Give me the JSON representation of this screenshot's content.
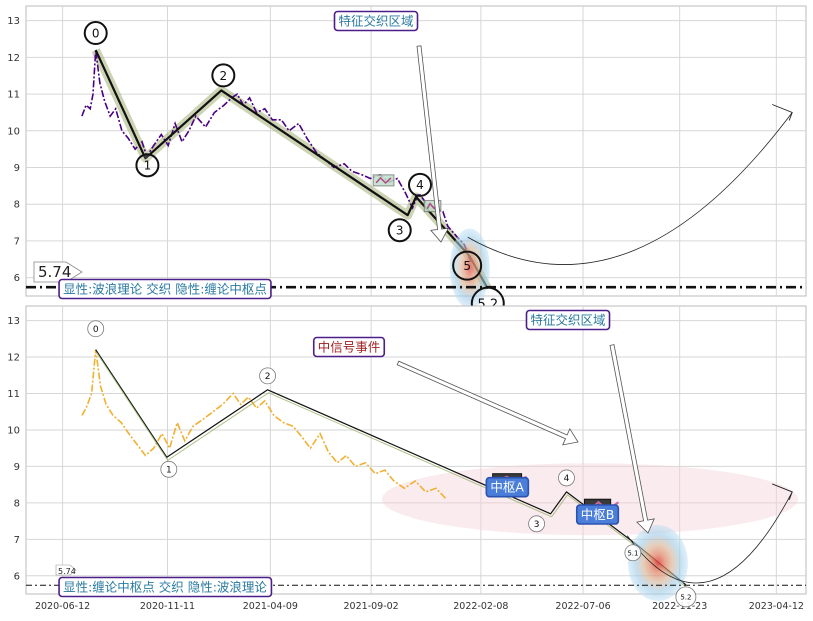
{
  "chart_data": [
    {
      "type": "line",
      "panel": "top",
      "ylim": [
        5.5,
        13.4
      ],
      "yticks": [
        6,
        7,
        8,
        9,
        10,
        11,
        12,
        13
      ],
      "grid": true,
      "series_color": "#4b0082",
      "price": [
        [
          "2020-07-10",
          10.4
        ],
        [
          "2020-07-16",
          10.7
        ],
        [
          "2020-07-22",
          10.6
        ],
        [
          "2020-07-26",
          11.0
        ],
        [
          "2020-07-30",
          12.2
        ],
        [
          "2020-08-05",
          11.3
        ],
        [
          "2020-08-12",
          10.8
        ],
        [
          "2020-08-20",
          10.4
        ],
        [
          "2020-08-28",
          10.6
        ],
        [
          "2020-09-06",
          10.0
        ],
        [
          "2020-09-15",
          9.8
        ],
        [
          "2020-09-25",
          9.5
        ],
        [
          "2020-10-05",
          9.7
        ],
        [
          "2020-10-12",
          9.3
        ],
        [
          "2020-10-22",
          9.6
        ],
        [
          "2020-11-02",
          9.9
        ],
        [
          "2020-11-12",
          9.6
        ],
        [
          "2020-11-22",
          10.2
        ],
        [
          "2020-12-02",
          9.7
        ],
        [
          "2020-12-12",
          10.0
        ],
        [
          "2020-12-22",
          10.4
        ],
        [
          "2021-01-05",
          10.1
        ],
        [
          "2021-01-18",
          10.5
        ],
        [
          "2021-02-01",
          10.7
        ],
        [
          "2021-02-12",
          10.9
        ],
        [
          "2021-02-20",
          11.0
        ],
        [
          "2021-03-01",
          10.7
        ],
        [
          "2021-03-10",
          10.9
        ],
        [
          "2021-03-20",
          10.5
        ],
        [
          "2021-04-01",
          10.6
        ],
        [
          "2021-04-12",
          10.3
        ],
        [
          "2021-04-25",
          10.3
        ],
        [
          "2021-05-06",
          10.0
        ],
        [
          "2021-05-20",
          10.2
        ],
        [
          "2021-06-01",
          9.8
        ],
        [
          "2021-06-15",
          9.4
        ],
        [
          "2021-06-28",
          9.2
        ],
        [
          "2021-07-10",
          9.0
        ],
        [
          "2021-07-25",
          9.1
        ],
        [
          "2021-08-05",
          8.9
        ],
        [
          "2021-08-20",
          8.8
        ],
        [
          "2021-09-01",
          8.7
        ],
        [
          "2021-09-15",
          8.8
        ],
        [
          "2021-09-28",
          8.6
        ],
        [
          "2021-10-10",
          8.7
        ],
        [
          "2021-10-22",
          8.3
        ],
        [
          "2021-11-01",
          7.9
        ],
        [
          "2021-11-10",
          8.3
        ],
        [
          "2021-11-22",
          8.0
        ],
        [
          "2021-12-05",
          7.9
        ],
        [
          "2021-12-15",
          7.8
        ],
        [
          "2021-12-22",
          7.4
        ],
        [
          "2022-01-05",
          7.1
        ],
        [
          "2022-01-15",
          6.9
        ],
        [
          "2022-01-25",
          6.4
        ]
      ],
      "wave_points": [
        {
          "label": "0",
          "date": "2020-07-30",
          "value": 12.2
        },
        {
          "label": "1",
          "date": "2020-10-10",
          "value": 9.25
        },
        {
          "label": "2",
          "date": "2021-01-28",
          "value": 11.1
        },
        {
          "label": "3",
          "date": "2021-10-25",
          "value": 7.7
        },
        {
          "label": "4",
          "date": "2021-11-06",
          "value": 8.2
        },
        {
          "label": "5",
          "date": "2022-01-22",
          "value": 6.6
        },
        {
          "label": "5.2",
          "date": "2022-02-18",
          "value": 5.7
        }
      ],
      "boxes": [
        {
          "start": "2021-09-05",
          "end": "2021-10-05",
          "low": 8.5,
          "high": 8.8
        },
        {
          "start": "2021-11-18",
          "end": "2021-12-12",
          "low": 7.8,
          "high": 8.1
        }
      ],
      "hline": {
        "value": 5.74,
        "label": "5.74"
      },
      "arc": {
        "start": "2022-01-20",
        "end": "2023-05-05",
        "start_value": 7.1,
        "end_value": 10.5,
        "min_value": 6.7
      },
      "annotations": {
        "interweave": "特征交织区域",
        "legend": "显性:波浪理论 交织 隐性:缠论中枢点"
      }
    },
    {
      "type": "line",
      "panel": "bottom",
      "ylim": [
        5.5,
        13.4
      ],
      "yticks": [
        6,
        7,
        8,
        9,
        10,
        11,
        12,
        13
      ],
      "grid": true,
      "series_color": "#f0b030",
      "xtick_labels": [
        "2020-06-12",
        "2020-11-11",
        "2021-04-09",
        "2021-09-02",
        "2022-02-08",
        "2022-07-06",
        "2022-11-23",
        "2023-04-12"
      ],
      "price": [
        [
          "2020-07-10",
          10.4
        ],
        [
          "2020-07-16",
          10.6
        ],
        [
          "2020-07-24",
          11.0
        ],
        [
          "2020-07-30",
          12.2
        ],
        [
          "2020-08-06",
          11.2
        ],
        [
          "2020-08-14",
          10.7
        ],
        [
          "2020-08-24",
          10.4
        ],
        [
          "2020-09-05",
          10.2
        ],
        [
          "2020-09-16",
          9.9
        ],
        [
          "2020-09-28",
          9.6
        ],
        [
          "2020-10-10",
          9.3
        ],
        [
          "2020-10-22",
          9.5
        ],
        [
          "2020-11-03",
          9.9
        ],
        [
          "2020-11-14",
          9.5
        ],
        [
          "2020-11-25",
          10.2
        ],
        [
          "2020-12-06",
          9.7
        ],
        [
          "2020-12-18",
          10.1
        ],
        [
          "2021-01-02",
          10.3
        ],
        [
          "2021-01-16",
          10.5
        ],
        [
          "2021-01-30",
          10.7
        ],
        [
          "2021-02-14",
          11.0
        ],
        [
          "2021-02-25",
          10.7
        ],
        [
          "2021-03-08",
          10.9
        ],
        [
          "2021-03-20",
          10.6
        ],
        [
          "2021-04-01",
          10.8
        ],
        [
          "2021-04-14",
          10.4
        ],
        [
          "2021-04-28",
          10.2
        ],
        [
          "2021-05-12",
          10.1
        ],
        [
          "2021-05-25",
          9.8
        ],
        [
          "2021-06-06",
          9.5
        ],
        [
          "2021-06-20",
          9.9
        ],
        [
          "2021-07-02",
          9.4
        ],
        [
          "2021-07-15",
          9.1
        ],
        [
          "2021-07-28",
          9.3
        ],
        [
          "2021-08-10",
          9.0
        ],
        [
          "2021-08-25",
          9.1
        ],
        [
          "2021-09-08",
          8.8
        ],
        [
          "2021-09-22",
          8.9
        ],
        [
          "2021-10-05",
          8.6
        ],
        [
          "2021-10-20",
          8.4
        ],
        [
          "2021-11-05",
          8.6
        ],
        [
          "2021-11-20",
          8.3
        ],
        [
          "2021-12-05",
          8.4
        ],
        [
          "2021-12-20",
          8.1
        ]
      ],
      "wave_points": [
        {
          "label": "0",
          "date": "2020-07-30",
          "value": 12.2
        },
        {
          "label": "1",
          "date": "2020-11-10",
          "value": 9.25
        },
        {
          "label": "2",
          "date": "2021-04-05",
          "value": 11.1
        },
        {
          "label": "3",
          "date": "2022-05-20",
          "value": 7.7
        },
        {
          "label": "4",
          "date": "2022-06-12",
          "value": 8.3
        },
        {
          "label": "5.1",
          "date": "2022-09-22",
          "value": 6.85
        },
        {
          "label": "5.2",
          "date": "2022-12-02",
          "value": 5.75
        }
      ],
      "zhongshu": [
        {
          "label": "中枢A",
          "start": "2022-02-25",
          "end": "2022-04-08",
          "low": 8.5,
          "high": 8.8
        },
        {
          "label": "中枢B",
          "start": "2022-07-08",
          "end": "2022-08-15",
          "low": 7.7,
          "high": 8.1
        }
      ],
      "hline": {
        "value": 5.74,
        "label": "5.74"
      },
      "arc": {
        "start": "2022-09-08",
        "end": "2023-05-05",
        "start_value": 7.1,
        "end_value": 8.3,
        "min_value": 5.85
      },
      "annotations": {
        "interweave": "特征交织区域",
        "signal": "中信号事件",
        "legend": "显性:缠论中枢点 交织 隐性:波浪理论"
      }
    }
  ]
}
